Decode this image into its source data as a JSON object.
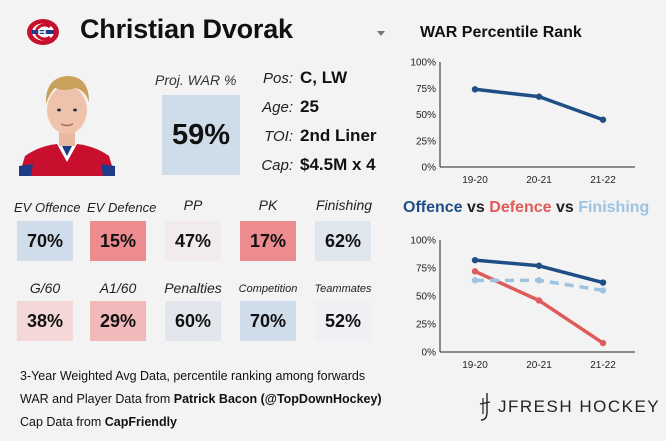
{
  "header": {
    "team_logo": "canadiens-logo-icon",
    "player_name": "Christian Dvorak",
    "dropdown_icon": "caret-down-icon"
  },
  "projection": {
    "label": "Proj. WAR %",
    "value": "59%",
    "color": "#cfdcea"
  },
  "info": [
    {
      "label": "Pos:",
      "value": "C, LW"
    },
    {
      "label": "Age:",
      "value": "25"
    },
    {
      "label": "TOI:",
      "value": "2nd Liner"
    },
    {
      "label": "Cap:",
      "value": "$4.5M x 4"
    }
  ],
  "metrics": [
    {
      "label": "EV Offence",
      "value": "70%",
      "color": "#cfdcea"
    },
    {
      "label": "EV Defence",
      "value": "15%",
      "color": "#ec8c8f"
    },
    {
      "label": "PP",
      "value": "47%",
      "color": "#f1eceb"
    },
    {
      "label": "PK",
      "value": "17%",
      "color": "#ec8c8f"
    },
    {
      "label": "Finishing",
      "value": "62%",
      "color": "#dfe6ee"
    },
    {
      "label": "G/60",
      "value": "38%",
      "color": "#f4d7d7"
    },
    {
      "label": "A1/60",
      "value": "29%",
      "color": "#f1b9ba"
    },
    {
      "label": "Penalties",
      "value": "60%",
      "color": "#e3e7ed"
    },
    {
      "label": "Competition",
      "value": "70%",
      "color": "#cfdcea"
    },
    {
      "label": "Teammates",
      "value": "52%",
      "color": "#eef0f3"
    }
  ],
  "footer": {
    "line1": "3-Year Weighted Avg Data, percentile ranking among forwards",
    "line2_prefix": "WAR and Player Data from ",
    "line2_bold": "Patrick Bacon (@TopDownHockey)",
    "line3_prefix": "Cap Data from ",
    "line3_bold": "CapFriendly"
  },
  "brand": {
    "name": "JFRESH HOCKEY",
    "icon": "jfresh-logo-icon"
  },
  "colors": {
    "offence": "#1f4e86",
    "defence": "#e05a5a",
    "finishing": "#9dc3e0"
  },
  "chart_data": [
    {
      "type": "line",
      "title": "WAR Percentile Rank",
      "categories": [
        "19-20",
        "20-21",
        "21-22"
      ],
      "series": [
        {
          "name": "WAR",
          "values": [
            74,
            67,
            45
          ],
          "color": "#1f4e86",
          "dashed": false
        }
      ],
      "ylim": [
        0,
        100
      ],
      "yticks": [
        "0%",
        "25%",
        "50%",
        "75%",
        "100%"
      ],
      "xlabel": "",
      "ylabel": ""
    },
    {
      "type": "line",
      "title_parts": [
        {
          "text": "Offence",
          "color": "#1f4e86"
        },
        {
          "text": " vs ",
          "color": "#222222"
        },
        {
          "text": "Defence",
          "color": "#e05a5a"
        },
        {
          "text": " vs ",
          "color": "#222222"
        },
        {
          "text": "Finishing",
          "color": "#9dc3e0"
        }
      ],
      "categories": [
        "19-20",
        "20-21",
        "21-22"
      ],
      "series": [
        {
          "name": "Offence",
          "values": [
            82,
            77,
            62
          ],
          "color": "#1f4e86",
          "dashed": false
        },
        {
          "name": "Defence",
          "values": [
            72,
            46,
            8
          ],
          "color": "#e05a5a",
          "dashed": false
        },
        {
          "name": "Finishing",
          "values": [
            64,
            64,
            55
          ],
          "color": "#9dc3e0",
          "dashed": true
        }
      ],
      "ylim": [
        0,
        100
      ],
      "yticks": [
        "0%",
        "25%",
        "50%",
        "75%",
        "100%"
      ],
      "xlabel": "",
      "ylabel": ""
    }
  ]
}
